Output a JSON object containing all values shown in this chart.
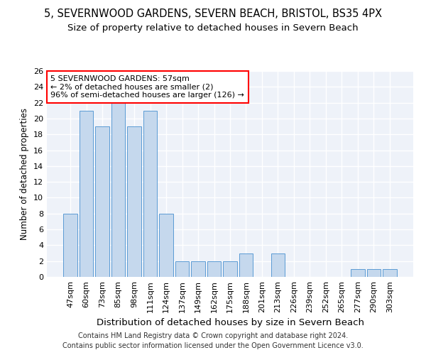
{
  "title1": "5, SEVERNWOOD GARDENS, SEVERN BEACH, BRISTOL, BS35 4PX",
  "title2": "Size of property relative to detached houses in Severn Beach",
  "xlabel": "Distribution of detached houses by size in Severn Beach",
  "ylabel": "Number of detached properties",
  "footer1": "Contains HM Land Registry data © Crown copyright and database right 2024.",
  "footer2": "Contains public sector information licensed under the Open Government Licence v3.0.",
  "categories": [
    "47sqm",
    "60sqm",
    "73sqm",
    "85sqm",
    "98sqm",
    "111sqm",
    "124sqm",
    "137sqm",
    "149sqm",
    "162sqm",
    "175sqm",
    "188sqm",
    "201sqm",
    "213sqm",
    "226sqm",
    "239sqm",
    "252sqm",
    "265sqm",
    "277sqm",
    "290sqm",
    "303sqm"
  ],
  "values": [
    8,
    21,
    19,
    22,
    19,
    21,
    8,
    2,
    2,
    2,
    2,
    3,
    0,
    3,
    0,
    0,
    0,
    0,
    1,
    1,
    1
  ],
  "bar_color": "#c5d8ed",
  "bar_edge_color": "#5b9bd5",
  "annotation_line1": "5 SEVERNWOOD GARDENS: 57sqm",
  "annotation_line2": "← 2% of detached houses are smaller (2)",
  "annotation_line3": "96% of semi-detached houses are larger (126) →",
  "annotation_box_color": "white",
  "annotation_box_edge_color": "red",
  "ylim": [
    0,
    26
  ],
  "yticks": [
    0,
    2,
    4,
    6,
    8,
    10,
    12,
    14,
    16,
    18,
    20,
    22,
    24,
    26
  ],
  "bg_color": "#eef2f9",
  "grid_color": "white",
  "title1_fontsize": 10.5,
  "title2_fontsize": 9.5,
  "xlabel_fontsize": 9.5,
  "ylabel_fontsize": 8.5,
  "tick_fontsize": 8,
  "annotation_fontsize": 8,
  "footer_fontsize": 7
}
